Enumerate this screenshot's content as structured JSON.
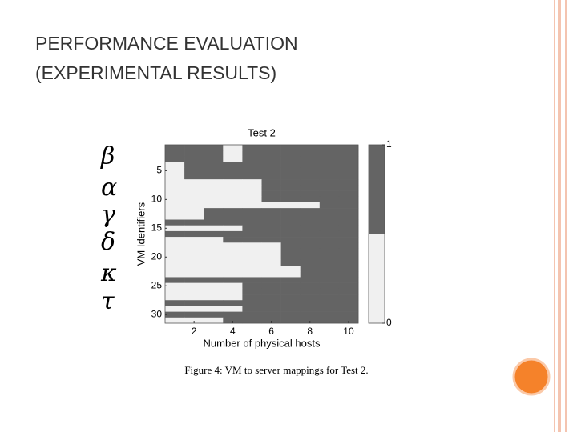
{
  "slide": {
    "title_lines": [
      "PERFORMANCE EVALUATION",
      "(EXPERIMENTAL RESULTS)"
    ],
    "symbols": [
      "β",
      "α",
      "γ",
      "δ",
      "κ",
      "τ"
    ],
    "caption": "Figure 4: VM to server mappings for Test 2."
  },
  "chart_data": {
    "type": "heatmap",
    "title": "Test 2",
    "x_label": "Number of physical hosts",
    "y_label": "VM Identifiers",
    "x": [
      1,
      2,
      3,
      4,
      5,
      6,
      7,
      8,
      9,
      10
    ],
    "y": [
      1,
      2,
      3,
      4,
      5,
      6,
      7,
      8,
      9,
      10,
      11,
      12,
      13,
      14,
      15,
      16,
      17,
      18,
      19,
      20,
      21,
      22,
      23,
      24,
      25,
      26,
      27,
      28,
      29,
      30,
      31
    ],
    "values": [
      [
        1,
        1,
        1,
        0,
        1,
        1,
        1,
        1,
        1,
        1
      ],
      [
        1,
        1,
        1,
        0,
        1,
        1,
        1,
        1,
        1,
        1
      ],
      [
        1,
        1,
        1,
        0,
        1,
        1,
        1,
        1,
        1,
        1
      ],
      [
        0,
        1,
        1,
        1,
        1,
        1,
        1,
        1,
        1,
        1
      ],
      [
        0,
        1,
        1,
        1,
        1,
        1,
        1,
        1,
        1,
        1
      ],
      [
        0,
        1,
        1,
        1,
        1,
        1,
        1,
        1,
        1,
        1
      ],
      [
        0,
        0,
        0,
        0,
        0,
        1,
        1,
        1,
        1,
        1
      ],
      [
        0,
        0,
        0,
        0,
        0,
        1,
        1,
        1,
        1,
        1
      ],
      [
        0,
        0,
        0,
        0,
        0,
        1,
        1,
        1,
        1,
        1
      ],
      [
        0,
        0,
        0,
        0,
        0,
        1,
        1,
        1,
        1,
        1
      ],
      [
        0,
        0,
        0,
        0,
        0,
        0,
        0,
        0,
        1,
        1
      ],
      [
        0,
        0,
        1,
        1,
        1,
        1,
        1,
        1,
        1,
        1
      ],
      [
        0,
        0,
        1,
        1,
        1,
        1,
        1,
        1,
        1,
        1
      ],
      [
        1,
        1,
        1,
        1,
        1,
        1,
        1,
        1,
        1,
        1
      ],
      [
        0,
        0,
        0,
        0,
        1,
        1,
        1,
        1,
        1,
        1
      ],
      [
        1,
        1,
        1,
        1,
        1,
        1,
        1,
        1,
        1,
        1
      ],
      [
        0,
        0,
        0,
        1,
        1,
        1,
        1,
        1,
        1,
        1
      ],
      [
        0,
        0,
        0,
        0,
        0,
        0,
        1,
        1,
        1,
        1
      ],
      [
        0,
        0,
        0,
        0,
        0,
        0,
        1,
        1,
        1,
        1
      ],
      [
        0,
        0,
        0,
        0,
        0,
        0,
        1,
        1,
        1,
        1
      ],
      [
        0,
        0,
        0,
        0,
        0,
        0,
        1,
        1,
        1,
        1
      ],
      [
        0,
        0,
        0,
        0,
        0,
        0,
        0,
        1,
        1,
        1
      ],
      [
        0,
        0,
        0,
        0,
        0,
        0,
        0,
        1,
        1,
        1
      ],
      [
        1,
        1,
        1,
        1,
        1,
        1,
        1,
        1,
        1,
        1
      ],
      [
        0,
        0,
        0,
        0,
        1,
        1,
        1,
        1,
        1,
        1
      ],
      [
        0,
        0,
        0,
        0,
        1,
        1,
        1,
        1,
        1,
        1
      ],
      [
        0,
        0,
        0,
        0,
        1,
        1,
        1,
        1,
        1,
        1
      ],
      [
        1,
        1,
        1,
        1,
        1,
        1,
        1,
        1,
        1,
        1
      ],
      [
        0,
        0,
        0,
        0,
        1,
        1,
        1,
        1,
        1,
        1
      ],
      [
        1,
        1,
        1,
        1,
        1,
        1,
        1,
        1,
        1,
        1
      ],
      [
        0,
        0,
        0,
        1,
        1,
        1,
        1,
        1,
        1,
        1
      ]
    ],
    "colors": [
      "#f0f0f0",
      "#646464"
    ],
    "xlim": [
      0.5,
      10.5
    ],
    "xticks": [
      2,
      4,
      6,
      8,
      10
    ],
    "ylim": [
      0.5,
      31.5
    ],
    "yticks": [
      5,
      10,
      15,
      20,
      25,
      30
    ],
    "clim": [
      0,
      1
    ],
    "cticks": [
      0,
      1
    ]
  }
}
